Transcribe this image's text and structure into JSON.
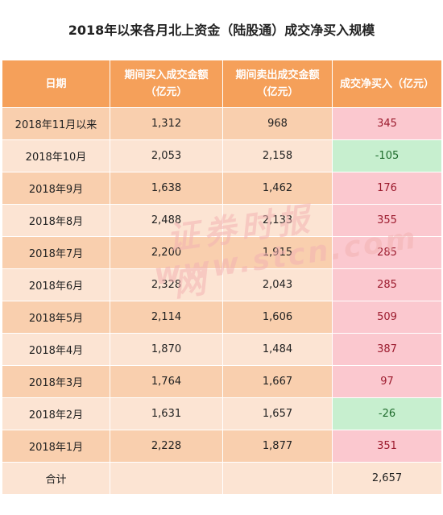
{
  "title": "2018年以来各月北上资金（陆股通）成交净买入规模",
  "headers": {
    "date": "日期",
    "buy": "期间买入成交金额（亿元）",
    "sell": "期间卖出成交金额（亿元）",
    "net": "成交净买入（亿元）"
  },
  "rows": [
    {
      "date": "2018年11月以来",
      "buy": "1,312",
      "sell": "968",
      "net": "345",
      "sign": "pos"
    },
    {
      "date": "2018年10月",
      "buy": "2,053",
      "sell": "2,158",
      "net": "-105",
      "sign": "neg"
    },
    {
      "date": "2018年9月",
      "buy": "1,638",
      "sell": "1,462",
      "net": "176",
      "sign": "pos"
    },
    {
      "date": "2018年8月",
      "buy": "2,488",
      "sell": "2,133",
      "net": "355",
      "sign": "pos"
    },
    {
      "date": "2018年7月",
      "buy": "2,200",
      "sell": "1,915",
      "net": "285",
      "sign": "pos"
    },
    {
      "date": "2018年6月",
      "buy": "2,328",
      "sell": "2,043",
      "net": "285",
      "sign": "pos"
    },
    {
      "date": "2018年5月",
      "buy": "2,114",
      "sell": "1,606",
      "net": "509",
      "sign": "pos"
    },
    {
      "date": "2018年4月",
      "buy": "1,870",
      "sell": "1,484",
      "net": "387",
      "sign": "pos"
    },
    {
      "date": "2018年3月",
      "buy": "1,764",
      "sell": "1,667",
      "net": "97",
      "sign": "pos"
    },
    {
      "date": "2018年2月",
      "buy": "1,631",
      "sell": "1,657",
      "net": "-26",
      "sign": "neg"
    },
    {
      "date": "2018年1月",
      "buy": "2,228",
      "sell": "1,877",
      "net": "351",
      "sign": "pos"
    }
  ],
  "total": {
    "label": "合计",
    "buy": "",
    "sell": "",
    "net": "2,657"
  },
  "watermark": {
    "line1": "证券时报网",
    "line2": "www.stcn.com"
  },
  "colors": {
    "header": "#f5a05a",
    "row_odd": "#f9cfae",
    "row_even": "#fce4d3",
    "positive_bg": "#fbc8cf",
    "negative_bg": "#c7efcf"
  }
}
